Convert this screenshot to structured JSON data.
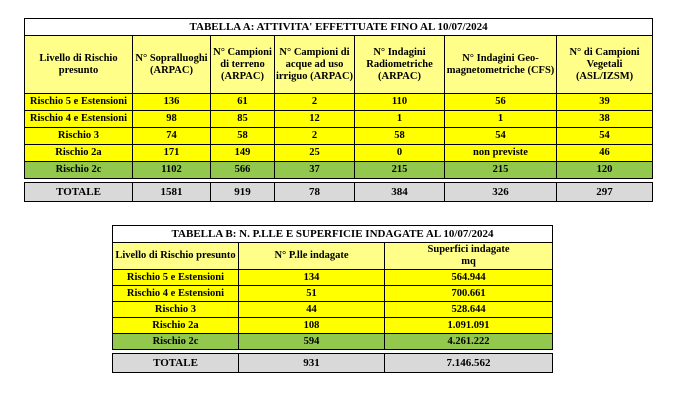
{
  "table_a": {
    "title": "TABELLA A: ATTIVITA' EFFETTUATE FINO AL 10/07/2024",
    "headers": [
      "Livello di Rischio presunto",
      "N° Sopralluoghi (ARPAC)",
      "N° Campioni di terreno (ARPAC)",
      "N° Campioni di acque ad uso irriguo (ARPAC)",
      "N° Indagini Radiometriche (ARPAC)",
      "N° Indagini Geo-magnetometriche (CFS)",
      "N° di Campioni Vegetali (ASL/IZSM)"
    ],
    "rows": [
      [
        "Rischio 5 e Estensioni",
        "136",
        "61",
        "2",
        "110",
        "56",
        "39"
      ],
      [
        "Rischio 4 e Estensioni",
        "98",
        "85",
        "12",
        "1",
        "1",
        "38"
      ],
      [
        "Rischio 3",
        "74",
        "58",
        "2",
        "58",
        "54",
        "54"
      ],
      [
        "Rischio 2a",
        "171",
        "149",
        "25",
        "0",
        "non previste",
        "46"
      ],
      [
        "Rischio 2c",
        "1102",
        "566",
        "37",
        "215",
        "215",
        "120"
      ]
    ],
    "total": [
      "TOTALE",
      "1581",
      "919",
      "78",
      "384",
      "326",
      "297"
    ]
  },
  "table_b": {
    "title": "TABELLA B: N. P.LLE E SUPERFICIE INDAGATE AL 10/07/2024",
    "headers": [
      "Livello di Rischio presunto",
      "N° P.lle indagate",
      "Superfici indagate mq"
    ],
    "rows": [
      [
        "Rischio 5 e Estensioni",
        "134",
        "564.944"
      ],
      [
        "Rischio 4 e Estensioni",
        "51",
        "700.661"
      ],
      [
        "Rischio 3",
        "44",
        "528.644"
      ],
      [
        "Rischio 2a",
        "108",
        "1.091.091"
      ],
      [
        "Rischio 2c",
        "594",
        "4.261.222"
      ]
    ],
    "total": [
      "TOTALE",
      "931",
      "7.146.562"
    ]
  },
  "colors": {
    "header_fill": "#fefe88",
    "risk_row_fill": "#ffff00",
    "risk_2c_fill": "#91c84d",
    "total_fill": "#d9d9d9"
  }
}
